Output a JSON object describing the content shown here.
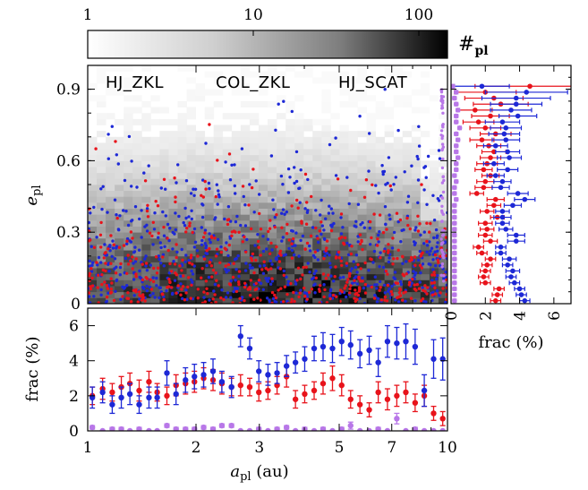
{
  "colors": {
    "hj_zkl": "#e8131b",
    "col_zkl": "#1d28d6",
    "hj_scat": "#b877e8",
    "frame": "#000000"
  },
  "colorbar": {
    "tick_labels": [
      "1",
      "10",
      "100"
    ],
    "label_main": "#",
    "label_sub": "pl",
    "scale": "log",
    "range": [
      1,
      150
    ]
  },
  "legend": [
    "HJ_ZKL",
    "COL_ZKL",
    "HJ_SCAT"
  ],
  "axes": {
    "main_y_label_main": "e",
    "main_y_label_sub": "pl",
    "bottom_y_label": "frac (%)",
    "right_x_label": "frac (%)",
    "x_label_main": "a",
    "x_label_sub": "pl",
    "x_label_unit": " (au)",
    "x_ticks": [
      "1",
      "2",
      "3",
      "5",
      "7",
      "10"
    ],
    "main_y_ticks": [
      "0",
      "0.3",
      "0.6",
      "0.9"
    ],
    "bottom_y_ticks": [
      "0",
      "2",
      "4",
      "6"
    ],
    "right_x_ticks": [
      "0",
      "2",
      "4",
      "6"
    ]
  },
  "chart_data": [
    {
      "type": "heatmap",
      "description_scatter_overlay": "background density of planets with scattered points per population",
      "xlabel": "a_pl (au)",
      "ylabel": "e_pl",
      "xscale": "log",
      "xlim": [
        1,
        10
      ],
      "ylim": [
        0,
        1.0
      ],
      "colorbar_label": "#pl",
      "colorbar_range": [
        1,
        150
      ],
      "legend": [
        "HJ_ZKL",
        "COL_ZKL",
        "HJ_SCAT"
      ]
    },
    {
      "type": "scatter",
      "ylabel": "frac (%)",
      "xlabel": "a_pl (au)",
      "xscale": "log",
      "xlim": [
        1,
        10
      ],
      "ylim": [
        0,
        7
      ],
      "x": [
        1.03,
        1.1,
        1.17,
        1.24,
        1.31,
        1.39,
        1.48,
        1.56,
        1.66,
        1.76,
        1.87,
        1.98,
        2.1,
        2.23,
        2.36,
        2.51,
        2.66,
        2.82,
        2.99,
        3.17,
        3.36,
        3.57,
        3.78,
        4.01,
        4.26,
        4.51,
        4.79,
        5.08,
        5.38,
        5.71,
        6.06,
        6.42,
        6.81,
        7.23,
        7.66,
        8.13,
        8.62,
        9.15,
        9.7
      ],
      "series": [
        {
          "name": "HJ_ZKL",
          "values": [
            2.0,
            2.4,
            2.2,
            2.5,
            2.7,
            2.3,
            2.8,
            2.2,
            2.0,
            2.6,
            2.7,
            2.8,
            3.0,
            2.9,
            2.7,
            2.5,
            2.6,
            2.5,
            2.2,
            2.3,
            2.6,
            3.1,
            1.8,
            2.1,
            2.3,
            2.7,
            3.0,
            2.6,
            1.8,
            1.5,
            1.2,
            2.2,
            1.8,
            2.0,
            2.2,
            1.6,
            2.0,
            1.0,
            0.7
          ],
          "errors": [
            0.5,
            0.6,
            0.5,
            0.6,
            0.6,
            0.6,
            0.6,
            0.5,
            0.5,
            0.6,
            0.6,
            0.6,
            0.6,
            0.6,
            0.6,
            0.5,
            0.6,
            0.5,
            0.5,
            0.5,
            0.5,
            0.6,
            0.5,
            0.5,
            0.5,
            0.6,
            0.7,
            0.6,
            0.5,
            0.5,
            0.4,
            0.6,
            0.6,
            0.6,
            0.6,
            0.5,
            0.6,
            0.4,
            0.4
          ]
        },
        {
          "name": "COL_ZKL",
          "values": [
            1.9,
            2.2,
            1.5,
            1.9,
            2.1,
            1.5,
            1.9,
            1.9,
            3.3,
            2.1,
            2.9,
            3.1,
            3.2,
            3.4,
            2.8,
            2.5,
            5.4,
            4.7,
            3.4,
            3.2,
            3.3,
            3.7,
            3.9,
            4.1,
            4.7,
            4.8,
            4.7,
            5.1,
            4.9,
            4.4,
            4.6,
            3.9,
            5.1,
            5.0,
            5.1,
            4.8,
            2.3,
            4.1,
            4.1
          ],
          "errors": [
            0.6,
            0.6,
            0.5,
            0.6,
            0.6,
            0.5,
            0.6,
            0.6,
            0.7,
            0.6,
            0.7,
            0.7,
            0.7,
            0.7,
            0.6,
            0.6,
            0.6,
            0.6,
            0.6,
            0.6,
            0.6,
            0.6,
            0.6,
            0.7,
            0.7,
            0.8,
            0.8,
            0.8,
            0.8,
            0.8,
            0.8,
            0.8,
            0.9,
            0.9,
            1.0,
            1.0,
            0.9,
            1.1,
            1.2
          ]
        },
        {
          "name": "HJ_SCAT",
          "values": [
            0.2,
            0.0,
            0.1,
            0.1,
            0.0,
            0.1,
            0.0,
            0.0,
            0.3,
            0.1,
            0.1,
            0.1,
            0.2,
            0.1,
            0.3,
            0.3,
            0.0,
            0.0,
            0.1,
            0.0,
            0.1,
            0.2,
            0.0,
            0.1,
            0.0,
            0.1,
            0.0,
            0.1,
            0.3,
            0.0,
            0.0,
            0.1,
            0.0,
            0.7,
            0.0,
            0.1,
            0.0,
            0.0,
            0.0
          ],
          "errors": [
            0.1,
            0.0,
            0.1,
            0.1,
            0.0,
            0.1,
            0.0,
            0.0,
            0.1,
            0.1,
            0.1,
            0.1,
            0.1,
            0.1,
            0.1,
            0.1,
            0.0,
            0.0,
            0.1,
            0.0,
            0.1,
            0.1,
            0.0,
            0.1,
            0.0,
            0.1,
            0.0,
            0.1,
            0.2,
            0.0,
            0.0,
            0.1,
            0.0,
            0.3,
            0.0,
            0.1,
            0.0,
            0.0,
            0.0
          ]
        }
      ]
    },
    {
      "type": "scatter",
      "orientation": "horizontal",
      "xlabel": "frac (%)",
      "ylabel": "e_pl",
      "xlim": [
        0,
        7
      ],
      "ylim": [
        0,
        1.0
      ],
      "y": [
        0.0125,
        0.0375,
        0.0625,
        0.0875,
        0.1125,
        0.1375,
        0.1625,
        0.1875,
        0.2125,
        0.2375,
        0.2625,
        0.2875,
        0.3125,
        0.3375,
        0.3625,
        0.3875,
        0.4125,
        0.4375,
        0.4625,
        0.4875,
        0.5125,
        0.5375,
        0.5625,
        0.5875,
        0.6125,
        0.6375,
        0.6625,
        0.6875,
        0.7125,
        0.7375,
        0.7625,
        0.7875,
        0.8125,
        0.8375,
        0.8625,
        0.8875,
        0.9125
      ],
      "series": [
        {
          "name": "HJ_ZKL",
          "values": [
            2.6,
            2.7,
            2.8,
            2.0,
            1.9,
            2.0,
            2.1,
            2.3,
            1.8,
            1.6,
            2.3,
            2.0,
            2.1,
            2.0,
            2.7,
            2.1,
            2.5,
            2.6,
            1.5,
            1.9,
            2.0,
            2.3,
            1.9,
            2.1,
            2.3,
            2.5,
            2.2,
            1.8,
            2.6,
            2.0,
            1.6,
            2.3,
            1.4,
            2.9,
            2.5,
            2.0,
            4.6
          ],
          "errors": [
            0.3,
            0.3,
            0.3,
            0.3,
            0.3,
            0.3,
            0.3,
            0.3,
            0.3,
            0.3,
            0.4,
            0.4,
            0.4,
            0.4,
            0.4,
            0.4,
            0.4,
            0.5,
            0.4,
            0.5,
            0.5,
            0.5,
            0.5,
            0.6,
            0.6,
            0.7,
            0.7,
            0.7,
            0.9,
            0.9,
            0.9,
            1.1,
            1.0,
            1.6,
            1.7,
            1.8,
            3.2
          ]
        },
        {
          "name": "COL_ZKL",
          "values": [
            4.3,
            4.1,
            4.0,
            3.7,
            3.5,
            3.6,
            3.3,
            3.4,
            2.9,
            2.9,
            3.8,
            3.8,
            3.2,
            3.0,
            3.0,
            3.0,
            3.6,
            4.3,
            3.9,
            2.9,
            3.0,
            2.6,
            3.3,
            2.5,
            3.4,
            3.3,
            2.6,
            3.2,
            3.1,
            3.2,
            3.0,
            3.9,
            3.5,
            3.8,
            3.8,
            4.4,
            1.8
          ],
          "errors": [
            0.3,
            0.3,
            0.3,
            0.3,
            0.3,
            0.4,
            0.3,
            0.4,
            0.3,
            0.3,
            0.5,
            0.5,
            0.4,
            0.4,
            0.5,
            0.4,
            0.5,
            0.6,
            0.6,
            0.5,
            0.5,
            0.5,
            0.6,
            0.6,
            0.7,
            0.7,
            0.7,
            0.8,
            0.9,
            0.9,
            1.0,
            1.1,
            1.2,
            1.5,
            2.0,
            2.4,
            1.6
          ]
        },
        {
          "name": "HJ_SCAT",
          "values": [
            0.2,
            0.2,
            0.2,
            0.2,
            0.2,
            0.2,
            0.2,
            0.2,
            0.2,
            0.2,
            0.2,
            0.2,
            0.2,
            0.2,
            0.2,
            0.2,
            0.2,
            0.3,
            0.2,
            0.2,
            0.3,
            0.2,
            0.3,
            0.3,
            0.4,
            0.3,
            0.3,
            0.4,
            0.3,
            0.5,
            0.3,
            0.3,
            0.4,
            0.3,
            0.2,
            0.3,
            0.1
          ],
          "errors": [
            0.1,
            0.1,
            0.1,
            0.1,
            0.1,
            0.1,
            0.1,
            0.1,
            0.1,
            0.1,
            0.1,
            0.1,
            0.1,
            0.1,
            0.1,
            0.1,
            0.1,
            0.1,
            0.1,
            0.1,
            0.1,
            0.1,
            0.1,
            0.1,
            0.1,
            0.1,
            0.1,
            0.1,
            0.1,
            0.1,
            0.1,
            0.1,
            0.1,
            0.1,
            0.1,
            0.1,
            0.1
          ]
        }
      ]
    }
  ]
}
